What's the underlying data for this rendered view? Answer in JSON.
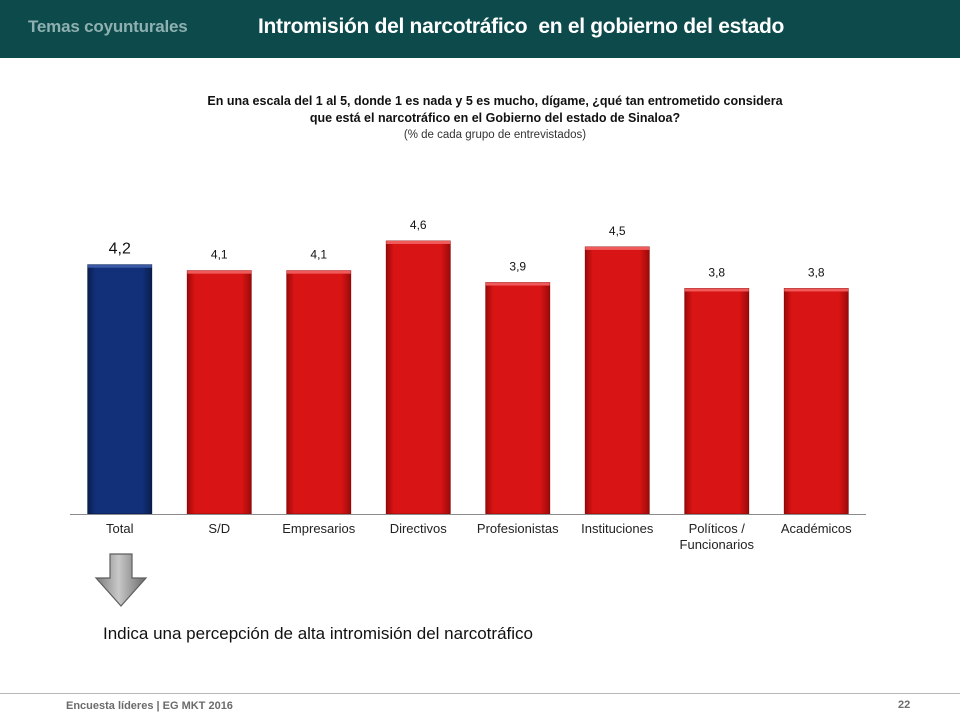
{
  "header": {
    "section": "Temas coyunturales",
    "title": "Intromisión del narcotráfico  en el gobierno del estado"
  },
  "question": {
    "line1": "En una escala del 1 al 5, donde 1 es nada y 5 es mucho, dígame, ¿qué tan entrometido considera",
    "line2": "que está el narcotráfico en el Gobierno del estado de Sinaloa?",
    "sub": "(% de cada grupo de entrevistados)"
  },
  "chart_data": {
    "type": "bar",
    "categories": [
      "Total",
      "S/D",
      "Empresarios",
      "Directivos",
      "Profesionistas",
      "Instituciones",
      "Políticos / Funcionarios",
      "Académicos"
    ],
    "category_lines": [
      [
        "Total"
      ],
      [
        "S/D"
      ],
      [
        "Empresarios"
      ],
      [
        "Directivos"
      ],
      [
        "Profesionistas"
      ],
      [
        "Instituciones"
      ],
      [
        "Políticos /",
        "Funcionarios"
      ],
      [
        "Académicos"
      ]
    ],
    "values": [
      4.2,
      4.1,
      4.1,
      4.6,
      3.9,
      4.5,
      3.8,
      3.8
    ],
    "value_labels": [
      "4,2",
      "4,1",
      "4,1",
      "4,6",
      "3,9",
      "4,5",
      "3,8",
      "3,8"
    ],
    "highlight_index": 0,
    "ylim": [
      0,
      5
    ],
    "grid": false,
    "colors": {
      "highlight": "#0f2d6b",
      "default": "#cc1111"
    }
  },
  "note": "Indica una percepción de alta intromisión del narcotráfico",
  "icons": {
    "arrow": "down-arrow-icon"
  },
  "footer": {
    "left": "Encuesta líderes | EG MKT 2016",
    "page": "22"
  }
}
